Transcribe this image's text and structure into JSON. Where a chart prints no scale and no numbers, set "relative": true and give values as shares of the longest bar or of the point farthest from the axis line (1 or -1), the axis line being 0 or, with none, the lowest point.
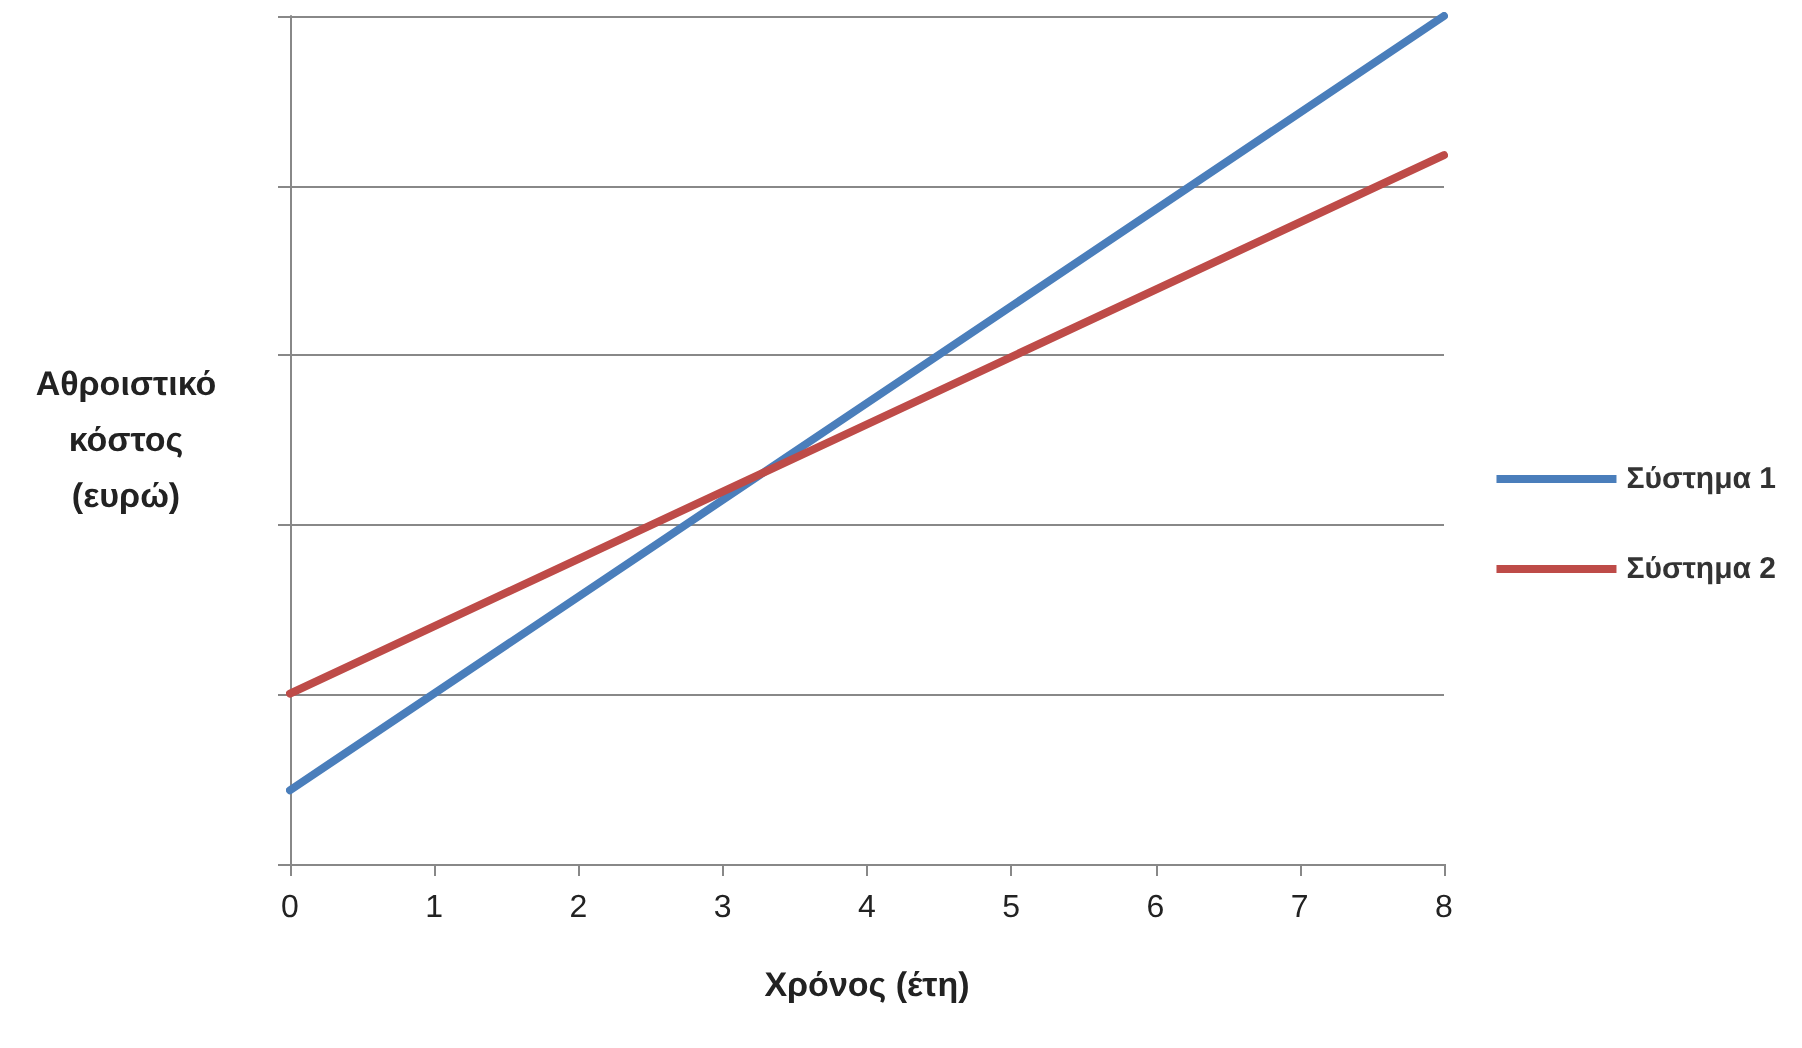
{
  "chart_data": {
    "type": "line",
    "xlabel": "Χρόνος (έτη)",
    "ylabel": "Αθροιστικό κόστος (ευρώ)",
    "relative": true,
    "x": [
      0,
      8
    ],
    "xlim": [
      0,
      8
    ],
    "xticks": [
      0,
      1,
      2,
      3,
      4,
      5,
      6,
      7,
      8
    ],
    "series": [
      {
        "name": "Σύστημα 1",
        "color": "#4a7ebb",
        "values": [
          0.087,
          1
        ]
      },
      {
        "name": "Σύστημα 2",
        "color": "#be4b48",
        "values": [
          0.201,
          0.836
        ]
      }
    ],
    "grid": "y",
    "legend": "right",
    "marker": "none",
    "line_style": "solid"
  }
}
